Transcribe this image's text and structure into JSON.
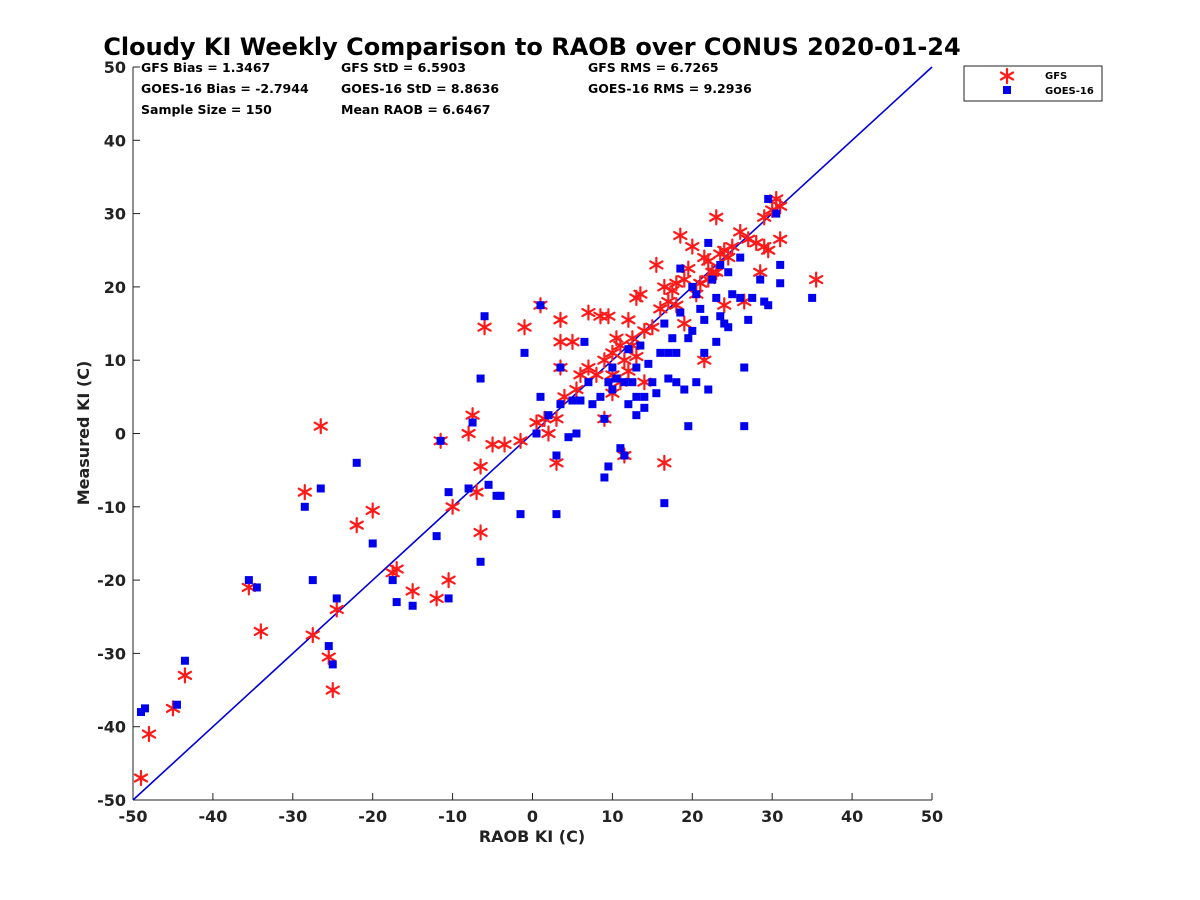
{
  "chart_data": {
    "type": "scatter",
    "title": "Cloudy KI Weekly Comparison to RAOB over CONUS 2020-01-24",
    "xlabel": "RAOB KI (C)",
    "ylabel": "Measured KI (C)",
    "xlim": [
      -50,
      50
    ],
    "ylim": [
      -50,
      50
    ],
    "xticks": [
      -50,
      -40,
      -30,
      -20,
      -10,
      0,
      10,
      20,
      30,
      40,
      50
    ],
    "yticks": [
      -50,
      -40,
      -30,
      -20,
      -10,
      0,
      10,
      20,
      30,
      40,
      50
    ],
    "grid": false,
    "legend_position": "top-right, outside plot area",
    "stats": {
      "gfs_bias": "GFS Bias = 1.3467",
      "goes_bias": "GOES-16 Bias = -2.7944",
      "sample_size": "Sample Size = 150",
      "gfs_std": "GFS StD = 6.5903",
      "goes_std": "GOES-16 StD = 8.8636",
      "mean_raob": "Mean RAOB = 6.6467",
      "gfs_rms": "GFS RMS = 6.7265",
      "goes_rms": "GOES-16 RMS = 9.2936"
    },
    "reference_line": {
      "from": [
        -50,
        -50
      ],
      "to": [
        50,
        50
      ],
      "color": "#0000dd"
    },
    "series": [
      {
        "name": "GFS",
        "marker": "asterisk",
        "color": "#ff1a1a",
        "points": [
          [
            -49,
            -47
          ],
          [
            -48,
            -41
          ],
          [
            -45,
            -37.5
          ],
          [
            -43.5,
            -33
          ],
          [
            -35.5,
            -21
          ],
          [
            -34,
            -27
          ],
          [
            -28.5,
            -8
          ],
          [
            -27.5,
            -27.5
          ],
          [
            -26.5,
            1
          ],
          [
            -25.5,
            -30.5
          ],
          [
            -25,
            -35
          ],
          [
            -24.5,
            -24
          ],
          [
            -22,
            -12.5
          ],
          [
            -20,
            -10.5
          ],
          [
            -17.5,
            -19
          ],
          [
            -17,
            -18.5
          ],
          [
            -15,
            -21.5
          ],
          [
            -12,
            -22.5
          ],
          [
            -11.5,
            -1
          ],
          [
            -10.5,
            -20
          ],
          [
            -10,
            -10
          ],
          [
            -8,
            0
          ],
          [
            -7.5,
            2.5
          ],
          [
            -7,
            -8
          ],
          [
            -6.5,
            -13.5
          ],
          [
            -6.5,
            -4.5
          ],
          [
            -6,
            14.5
          ],
          [
            -5,
            -1.5
          ],
          [
            -3.5,
            -1.5
          ],
          [
            -1.5,
            -1
          ],
          [
            -1,
            14.5
          ],
          [
            0.5,
            1.5
          ],
          [
            1,
            17.5
          ],
          [
            1.5,
            2
          ],
          [
            2,
            0
          ],
          [
            3,
            2
          ],
          [
            3,
            -4
          ],
          [
            3.5,
            15.5
          ],
          [
            3.5,
            12.5
          ],
          [
            3.5,
            9
          ],
          [
            4,
            5
          ],
          [
            5,
            12.5
          ],
          [
            5.5,
            6
          ],
          [
            6,
            8
          ],
          [
            7,
            16.5
          ],
          [
            7,
            9
          ],
          [
            8,
            8
          ],
          [
            8.5,
            16
          ],
          [
            9,
            2
          ],
          [
            9,
            10
          ],
          [
            9.5,
            16
          ],
          [
            10,
            11
          ],
          [
            10,
            5.5
          ],
          [
            10,
            8
          ],
          [
            10.5,
            13
          ],
          [
            11,
            12
          ],
          [
            11,
            7
          ],
          [
            11.5,
            10
          ],
          [
            11.5,
            -3
          ],
          [
            12,
            15.5
          ],
          [
            12,
            8.5
          ],
          [
            12.5,
            13
          ],
          [
            12.5,
            12
          ],
          [
            13,
            10.5
          ],
          [
            13,
            18.5
          ],
          [
            13.5,
            19
          ],
          [
            14,
            7
          ],
          [
            14,
            14
          ],
          [
            15,
            14.5
          ],
          [
            15.5,
            23
          ],
          [
            16,
            17
          ],
          [
            16.5,
            -4
          ],
          [
            16.5,
            20
          ],
          [
            17,
            18
          ],
          [
            17.5,
            19.5
          ],
          [
            18,
            20.5
          ],
          [
            18,
            17.5
          ],
          [
            18.5,
            27
          ],
          [
            19,
            21
          ],
          [
            19,
            15
          ],
          [
            19.5,
            22.5
          ],
          [
            20,
            25.5
          ],
          [
            20.5,
            19
          ],
          [
            21,
            20.5
          ],
          [
            21.5,
            24
          ],
          [
            21.5,
            10
          ],
          [
            22,
            23.5
          ],
          [
            22,
            21
          ],
          [
            22.5,
            22
          ],
          [
            23,
            22
          ],
          [
            23,
            29.5
          ],
          [
            23.5,
            24.5
          ],
          [
            24,
            25
          ],
          [
            24,
            17.5
          ],
          [
            24.5,
            24
          ],
          [
            25,
            25.5
          ],
          [
            26,
            27.5
          ],
          [
            26.5,
            18
          ],
          [
            27,
            26.5
          ],
          [
            28,
            26
          ],
          [
            28.5,
            22
          ],
          [
            29,
            29.5
          ],
          [
            29,
            25.5
          ],
          [
            29.5,
            25
          ],
          [
            30,
            30.5
          ],
          [
            30.5,
            32
          ],
          [
            31,
            26.5
          ],
          [
            31,
            31
          ],
          [
            35.5,
            21
          ]
        ]
      },
      {
        "name": "GOES-16",
        "marker": "square",
        "color": "#0000ee",
        "points": [
          [
            -48.5,
            -37.5
          ],
          [
            -49,
            -38
          ],
          [
            -44.5,
            -37
          ],
          [
            -43.5,
            -31
          ],
          [
            -35.5,
            -20
          ],
          [
            -34.5,
            -21
          ],
          [
            -28.5,
            -10
          ],
          [
            -27.5,
            -20
          ],
          [
            -26.5,
            -7.5
          ],
          [
            -25.5,
            -29
          ],
          [
            -25,
            -31.5
          ],
          [
            -24.5,
            -22.5
          ],
          [
            -22,
            -4
          ],
          [
            -20,
            -15
          ],
          [
            -17.5,
            -20
          ],
          [
            -17,
            -23
          ],
          [
            -15,
            -23.5
          ],
          [
            -12,
            -14
          ],
          [
            -11.5,
            -1
          ],
          [
            -10.5,
            -22.5
          ],
          [
            -10.5,
            -8
          ],
          [
            -8,
            -7.5
          ],
          [
            -7.5,
            1.5
          ],
          [
            -6.5,
            -17.5
          ],
          [
            -6.5,
            7.5
          ],
          [
            -6,
            16
          ],
          [
            -5.5,
            -7
          ],
          [
            -4.5,
            -8.5
          ],
          [
            -4,
            -8.5
          ],
          [
            -1.5,
            -11
          ],
          [
            -1,
            11
          ],
          [
            0.5,
            0
          ],
          [
            1,
            5
          ],
          [
            1,
            17.5
          ],
          [
            2,
            2.5
          ],
          [
            3,
            -3
          ],
          [
            3,
            -11
          ],
          [
            3.5,
            9
          ],
          [
            3.5,
            4
          ],
          [
            4.5,
            -0.5
          ],
          [
            5,
            4.5
          ],
          [
            5.5,
            0
          ],
          [
            6,
            4.5
          ],
          [
            6.5,
            12.5
          ],
          [
            7,
            7
          ],
          [
            7.5,
            4
          ],
          [
            8.5,
            5
          ],
          [
            9,
            2
          ],
          [
            9,
            -6
          ],
          [
            9.5,
            -4.5
          ],
          [
            9.5,
            7
          ],
          [
            10,
            6
          ],
          [
            10,
            9
          ],
          [
            10.5,
            7.5
          ],
          [
            11,
            -2
          ],
          [
            11.5,
            -3
          ],
          [
            11.5,
            7
          ],
          [
            12,
            4
          ],
          [
            12,
            11.5
          ],
          [
            12.5,
            7
          ],
          [
            13,
            5
          ],
          [
            13,
            9
          ],
          [
            13,
            2.5
          ],
          [
            13.5,
            12
          ],
          [
            14,
            5
          ],
          [
            14,
            3.5
          ],
          [
            14.5,
            9.5
          ],
          [
            15,
            7
          ],
          [
            15.5,
            5.5
          ],
          [
            16,
            11
          ],
          [
            16.5,
            -9.5
          ],
          [
            16.5,
            15
          ],
          [
            17,
            11
          ],
          [
            17,
            7.5
          ],
          [
            17.5,
            13
          ],
          [
            18,
            11
          ],
          [
            18,
            7
          ],
          [
            18.5,
            22.5
          ],
          [
            18.5,
            16.5
          ],
          [
            19,
            6
          ],
          [
            19.5,
            13
          ],
          [
            19.5,
            1
          ],
          [
            20,
            14
          ],
          [
            20,
            20
          ],
          [
            20.5,
            19
          ],
          [
            20.5,
            7
          ],
          [
            21,
            17
          ],
          [
            21.5,
            15.5
          ],
          [
            21.5,
            11
          ],
          [
            22,
            26
          ],
          [
            22,
            6
          ],
          [
            22.5,
            21
          ],
          [
            23,
            12.5
          ],
          [
            23,
            18.5
          ],
          [
            23.5,
            23
          ],
          [
            23.5,
            16
          ],
          [
            24,
            15
          ],
          [
            24.5,
            22
          ],
          [
            24.5,
            14.5
          ],
          [
            25,
            19
          ],
          [
            26,
            24
          ],
          [
            26,
            18.5
          ],
          [
            26.5,
            9
          ],
          [
            26.5,
            1
          ],
          [
            27,
            15.5
          ],
          [
            27.5,
            18.5
          ],
          [
            28.5,
            21
          ],
          [
            29,
            18
          ],
          [
            29.5,
            17.5
          ],
          [
            29.5,
            32
          ],
          [
            30.5,
            30
          ],
          [
            31,
            20.5
          ],
          [
            31,
            23
          ],
          [
            35,
            18.5
          ]
        ]
      }
    ]
  }
}
